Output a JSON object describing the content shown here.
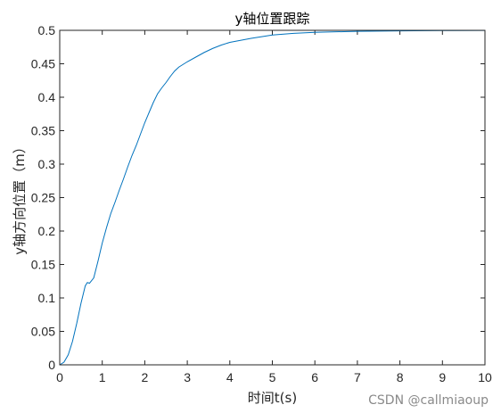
{
  "chart_data": {
    "type": "line",
    "title": "y轴位置跟踪",
    "xlabel": "时间t(s)",
    "ylabel": "y轴方向位置（m）",
    "xlim": [
      0,
      10
    ],
    "ylim": [
      0,
      0.5
    ],
    "xticks": [
      0,
      1,
      2,
      3,
      4,
      5,
      6,
      7,
      8,
      9,
      10
    ],
    "yticks": [
      0,
      0.05,
      0.1,
      0.15,
      0.2,
      0.25,
      0.3,
      0.35,
      0.4,
      0.45,
      0.5
    ],
    "ytick_labels": [
      "0",
      "0.05",
      "0.1",
      "0.15",
      "0.2",
      "0.25",
      "0.3",
      "0.35",
      "0.4",
      "0.45",
      "0.5"
    ],
    "grid": false,
    "line_color": "#0072BD",
    "series": [
      {
        "x": [
          0,
          0.1,
          0.2,
          0.3,
          0.4,
          0.5,
          0.6,
          0.65,
          0.7,
          0.8,
          0.9,
          1.0,
          1.1,
          1.2,
          1.3,
          1.4,
          1.5,
          1.6,
          1.7,
          1.8,
          1.9,
          2.0,
          2.1,
          2.2,
          2.3,
          2.4,
          2.5,
          2.6,
          2.7,
          2.8,
          2.9,
          3.0,
          3.2,
          3.4,
          3.6,
          3.8,
          4.0,
          4.5,
          5.0,
          5.5,
          6.0,
          6.5,
          7.0,
          8.0,
          9.0,
          10.0
        ],
        "y": [
          0,
          0.004,
          0.015,
          0.035,
          0.062,
          0.092,
          0.118,
          0.123,
          0.122,
          0.13,
          0.155,
          0.182,
          0.205,
          0.226,
          0.243,
          0.261,
          0.278,
          0.296,
          0.313,
          0.328,
          0.345,
          0.362,
          0.377,
          0.392,
          0.405,
          0.414,
          0.422,
          0.431,
          0.439,
          0.445,
          0.449,
          0.453,
          0.46,
          0.467,
          0.473,
          0.478,
          0.482,
          0.488,
          0.493,
          0.4955,
          0.497,
          0.4978,
          0.4985,
          0.4992,
          0.4996,
          0.4998
        ]
      }
    ]
  },
  "watermark": "CSDN @callmiaoup"
}
